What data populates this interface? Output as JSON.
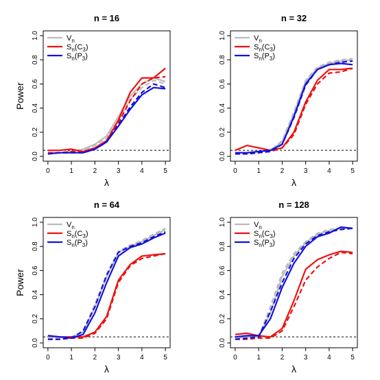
{
  "chart_data": [
    {
      "type": "line",
      "title": "n = 16",
      "xlabel": "λ",
      "ylabel": "Power",
      "xlim": [
        0,
        5
      ],
      "ylim": [
        0,
        1
      ],
      "xticks": [
        "0",
        "1",
        "2",
        "3",
        "4",
        "5"
      ],
      "yticks": [
        "0.0",
        "0.2",
        "0.4",
        "0.6",
        "0.8",
        "1.0"
      ],
      "reference_line": 0.05,
      "legend": [
        "V",
        "S(C)",
        "S(P)"
      ],
      "x": [
        0,
        0.5,
        1,
        1.5,
        2,
        2.5,
        3,
        3.5,
        4,
        4.5,
        5
      ],
      "series": [
        {
          "name": "V",
          "style": "solid",
          "color": "#bbbbbb",
          "values": [
            0.03,
            0.03,
            0.04,
            0.06,
            0.1,
            0.17,
            0.33,
            0.5,
            0.6,
            0.65,
            0.62
          ]
        },
        {
          "name": "V",
          "style": "dashed",
          "color": "#bbbbbb",
          "values": [
            0.03,
            0.03,
            0.03,
            0.05,
            0.09,
            0.15,
            0.3,
            0.47,
            0.57,
            0.63,
            0.6
          ]
        },
        {
          "name": "S(C)",
          "style": "solid",
          "color": "#ee1111",
          "values": [
            0.05,
            0.05,
            0.06,
            0.04,
            0.07,
            0.13,
            0.3,
            0.53,
            0.65,
            0.65,
            0.73
          ]
        },
        {
          "name": "S(C)",
          "style": "dashed",
          "color": "#ee1111",
          "values": [
            0.03,
            0.03,
            0.04,
            0.04,
            0.06,
            0.12,
            0.28,
            0.46,
            0.6,
            0.65,
            0.66
          ]
        },
        {
          "name": "S(P)",
          "style": "solid",
          "color": "#1111dd",
          "values": [
            0.02,
            0.03,
            0.03,
            0.03,
            0.06,
            0.12,
            0.25,
            0.39,
            0.51,
            0.57,
            0.56
          ]
        },
        {
          "name": "S(P)",
          "style": "dashed",
          "color": "#1111dd",
          "values": [
            0.02,
            0.03,
            0.03,
            0.03,
            0.06,
            0.12,
            0.26,
            0.41,
            0.53,
            0.6,
            0.57
          ]
        }
      ]
    },
    {
      "type": "line",
      "title": "n = 32",
      "xlabel": "λ",
      "ylabel": "",
      "xlim": [
        0,
        5
      ],
      "ylim": [
        0,
        1
      ],
      "xticks": [
        "0",
        "1",
        "2",
        "3",
        "4",
        "5"
      ],
      "yticks": [
        "0.0",
        "0.2",
        "0.4",
        "0.6",
        "0.8",
        "1.0"
      ],
      "reference_line": 0.05,
      "legend": [
        "V",
        "S(C)",
        "S(P)"
      ],
      "x": [
        0,
        0.5,
        1,
        1.5,
        2,
        2.5,
        3,
        3.5,
        4,
        4.5,
        5
      ],
      "series": [
        {
          "name": "V",
          "style": "solid",
          "color": "#bbbbbb",
          "values": [
            0.03,
            0.03,
            0.04,
            0.05,
            0.12,
            0.35,
            0.62,
            0.73,
            0.77,
            0.79,
            0.8
          ]
        },
        {
          "name": "V",
          "style": "dashed",
          "color": "#bbbbbb",
          "values": [
            0.02,
            0.03,
            0.04,
            0.05,
            0.13,
            0.37,
            0.63,
            0.74,
            0.78,
            0.8,
            0.81
          ]
        },
        {
          "name": "S(C)",
          "style": "solid",
          "color": "#ee1111",
          "values": [
            0.05,
            0.09,
            0.07,
            0.05,
            0.07,
            0.2,
            0.45,
            0.63,
            0.72,
            0.72,
            0.73
          ]
        },
        {
          "name": "S(C)",
          "style": "dashed",
          "color": "#ee1111",
          "values": [
            0.02,
            0.02,
            0.03,
            0.04,
            0.07,
            0.18,
            0.43,
            0.6,
            0.69,
            0.7,
            0.73
          ]
        },
        {
          "name": "S(P)",
          "style": "solid",
          "color": "#1111dd",
          "values": [
            0.03,
            0.03,
            0.04,
            0.05,
            0.1,
            0.33,
            0.6,
            0.72,
            0.76,
            0.77,
            0.76
          ]
        },
        {
          "name": "S(P)",
          "style": "dashed",
          "color": "#1111dd",
          "values": [
            0.02,
            0.02,
            0.03,
            0.04,
            0.1,
            0.32,
            0.59,
            0.72,
            0.76,
            0.78,
            0.79
          ]
        }
      ]
    },
    {
      "type": "line",
      "title": "n = 64",
      "xlabel": "λ",
      "ylabel": "Power",
      "xlim": [
        0,
        5
      ],
      "ylim": [
        0,
        1
      ],
      "xticks": [
        "0",
        "1",
        "2",
        "3",
        "4",
        "5"
      ],
      "yticks": [
        "0.0",
        "0.2",
        "0.4",
        "0.6",
        "0.8",
        "1.0"
      ],
      "reference_line": 0.05,
      "legend": [
        "V",
        "S(C)",
        "S(P)"
      ],
      "x": [
        0,
        0.5,
        1,
        1.5,
        2,
        2.5,
        3,
        3.5,
        4,
        4.5,
        5
      ],
      "series": [
        {
          "name": "V",
          "style": "solid",
          "color": "#bbbbbb",
          "values": [
            0.05,
            0.05,
            0.05,
            0.09,
            0.3,
            0.55,
            0.75,
            0.8,
            0.84,
            0.89,
            0.94
          ]
        },
        {
          "name": "V",
          "style": "dashed",
          "color": "#bbbbbb",
          "values": [
            0.04,
            0.04,
            0.04,
            0.1,
            0.32,
            0.57,
            0.76,
            0.81,
            0.85,
            0.9,
            0.95
          ]
        },
        {
          "name": "S(C)",
          "style": "solid",
          "color": "#ee1111",
          "values": [
            0.06,
            0.05,
            0.05,
            0.05,
            0.09,
            0.22,
            0.52,
            0.65,
            0.72,
            0.73,
            0.74
          ]
        },
        {
          "name": "S(C)",
          "style": "dashed",
          "color": "#ee1111",
          "values": [
            0.03,
            0.03,
            0.04,
            0.04,
            0.08,
            0.2,
            0.5,
            0.64,
            0.7,
            0.72,
            0.74
          ]
        },
        {
          "name": "S(P)",
          "style": "solid",
          "color": "#1111dd",
          "values": [
            0.06,
            0.05,
            0.04,
            0.07,
            0.25,
            0.5,
            0.72,
            0.79,
            0.82,
            0.87,
            0.91
          ]
        },
        {
          "name": "S(P)",
          "style": "dashed",
          "color": "#1111dd",
          "values": [
            0.03,
            0.03,
            0.04,
            0.1,
            0.3,
            0.56,
            0.75,
            0.8,
            0.83,
            0.88,
            0.92
          ]
        }
      ]
    },
    {
      "type": "line",
      "title": "n = 128",
      "xlabel": "λ",
      "ylabel": "",
      "xlim": [
        0,
        5
      ],
      "ylim": [
        0,
        1
      ],
      "xticks": [
        "0",
        "1",
        "2",
        "3",
        "4",
        "5"
      ],
      "yticks": [
        "0.0",
        "0.2",
        "0.4",
        "0.6",
        "0.8",
        "1.0"
      ],
      "reference_line": 0.05,
      "legend": [
        "V",
        "S(C)",
        "S(P)"
      ],
      "x": [
        0,
        0.5,
        1,
        1.5,
        2,
        2.5,
        3,
        3.5,
        4,
        4.5,
        5
      ],
      "series": [
        {
          "name": "V",
          "style": "solid",
          "color": "#bbbbbb",
          "values": [
            0.04,
            0.05,
            0.05,
            0.25,
            0.55,
            0.72,
            0.83,
            0.9,
            0.93,
            0.95,
            0.95
          ]
        },
        {
          "name": "V",
          "style": "dashed",
          "color": "#bbbbbb",
          "values": [
            0.03,
            0.04,
            0.05,
            0.3,
            0.58,
            0.74,
            0.84,
            0.91,
            0.94,
            0.95,
            0.95
          ]
        },
        {
          "name": "S(C)",
          "style": "solid",
          "color": "#ee1111",
          "values": [
            0.07,
            0.08,
            0.06,
            0.05,
            0.12,
            0.35,
            0.61,
            0.69,
            0.73,
            0.76,
            0.75
          ]
        },
        {
          "name": "S(C)",
          "style": "dashed",
          "color": "#ee1111",
          "values": [
            0.03,
            0.03,
            0.04,
            0.04,
            0.1,
            0.3,
            0.52,
            0.63,
            0.7,
            0.75,
            0.74
          ]
        },
        {
          "name": "S(P)",
          "style": "solid",
          "color": "#1111dd",
          "values": [
            0.05,
            0.06,
            0.06,
            0.2,
            0.46,
            0.66,
            0.8,
            0.88,
            0.91,
            0.96,
            0.95
          ]
        },
        {
          "name": "S(P)",
          "style": "dashed",
          "color": "#1111dd",
          "values": [
            0.03,
            0.04,
            0.05,
            0.26,
            0.5,
            0.7,
            0.82,
            0.89,
            0.92,
            0.94,
            0.95
          ]
        }
      ]
    }
  ],
  "legend_labels": [
    {
      "base": "V",
      "sub": "n",
      "tail": ""
    },
    {
      "base": "S",
      "sub": "n",
      "tail": "(C",
      "sub2": "3",
      "end": ")"
    },
    {
      "base": "S",
      "sub": "n",
      "tail": "(P",
      "sub2": "3",
      "end": ")"
    }
  ]
}
